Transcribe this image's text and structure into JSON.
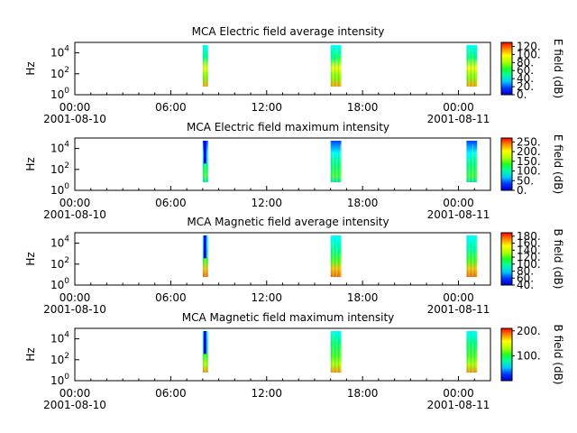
{
  "chart_data": [
    {
      "type": "heatmap",
      "title": "MCA  Electric field average intensity",
      "ylabel": "Hz",
      "x_ticks": [
        {
          "time": "00:00",
          "date": "2001-08-10"
        },
        {
          "time": "06:00",
          "date": ""
        },
        {
          "time": "12:00",
          "date": ""
        },
        {
          "time": "18:00",
          "date": ""
        },
        {
          "time": "00:00",
          "date": "2001-08-11"
        }
      ],
      "xlim": [
        "2001-08-10 00:00",
        "2001-08-11 02:00"
      ],
      "y_scale": "log",
      "ylim": [
        1,
        100000
      ],
      "y_ticks": [
        {
          "base": "10",
          "exp": "0"
        },
        {
          "base": "10",
          "exp": "2"
        },
        {
          "base": "10",
          "exp": "4"
        }
      ],
      "colorbar": {
        "label": "E field (dB)",
        "range": [
          0,
          130
        ],
        "ticks": [
          "0.",
          "20.",
          "40.",
          "60.",
          "80.",
          "100.",
          "120."
        ]
      },
      "segments": [
        {
          "start": "2001-08-10 08:00",
          "end": "2001-08-10 08:20"
        },
        {
          "start": "2001-08-10 16:00",
          "end": "2001-08-10 16:40"
        },
        {
          "start": "2001-08-11 00:30",
          "end": "2001-08-11 01:10"
        }
      ]
    },
    {
      "type": "heatmap",
      "title": "MCA  Electric field maximum intensity",
      "ylabel": "Hz",
      "x_ticks": [
        {
          "time": "00:00",
          "date": "2001-08-10"
        },
        {
          "time": "06:00",
          "date": ""
        },
        {
          "time": "12:00",
          "date": ""
        },
        {
          "time": "18:00",
          "date": ""
        },
        {
          "time": "00:00",
          "date": "2001-08-11"
        }
      ],
      "xlim": [
        "2001-08-10 00:00",
        "2001-08-11 02:00"
      ],
      "y_scale": "log",
      "ylim": [
        1,
        100000
      ],
      "y_ticks": [
        {
          "base": "10",
          "exp": "0"
        },
        {
          "base": "10",
          "exp": "2"
        },
        {
          "base": "10",
          "exp": "4"
        }
      ],
      "colorbar": {
        "label": "E field (dB)",
        "range": [
          0,
          270
        ],
        "ticks": [
          "0.",
          "50.",
          "100.",
          "150.",
          "200.",
          "250."
        ]
      },
      "segments": [
        {
          "start": "2001-08-10 08:00",
          "end": "2001-08-10 08:20"
        },
        {
          "start": "2001-08-10 16:00",
          "end": "2001-08-10 16:40"
        },
        {
          "start": "2001-08-11 00:30",
          "end": "2001-08-11 01:10"
        }
      ]
    },
    {
      "type": "heatmap",
      "title": "MCA  Magnetic field average intensity",
      "ylabel": "Hz",
      "x_ticks": [
        {
          "time": "00:00",
          "date": "2001-08-10"
        },
        {
          "time": "06:00",
          "date": ""
        },
        {
          "time": "12:00",
          "date": ""
        },
        {
          "time": "18:00",
          "date": ""
        },
        {
          "time": "00:00",
          "date": "2001-08-11"
        }
      ],
      "xlim": [
        "2001-08-10 00:00",
        "2001-08-11 02:00"
      ],
      "y_scale": "log",
      "ylim": [
        1,
        100000
      ],
      "y_ticks": [
        {
          "base": "10",
          "exp": "0"
        },
        {
          "base": "10",
          "exp": "2"
        },
        {
          "base": "10",
          "exp": "4"
        }
      ],
      "colorbar": {
        "label": "B field (dB)",
        "range": [
          40,
          190
        ],
        "ticks": [
          "40.",
          "60.",
          "80.",
          "100.",
          "120.",
          "140.",
          "160.",
          "180."
        ]
      },
      "segments": [
        {
          "start": "2001-08-10 08:00",
          "end": "2001-08-10 08:20"
        },
        {
          "start": "2001-08-10 16:00",
          "end": "2001-08-10 16:40"
        },
        {
          "start": "2001-08-11 00:30",
          "end": "2001-08-11 01:10"
        }
      ]
    },
    {
      "type": "heatmap",
      "title": "MCA  Magnetic field maximum intensity",
      "ylabel": "Hz",
      "x_ticks": [
        {
          "time": "00:00",
          "date": "2001-08-10"
        },
        {
          "time": "06:00",
          "date": ""
        },
        {
          "time": "12:00",
          "date": ""
        },
        {
          "time": "18:00",
          "date": ""
        },
        {
          "time": "00:00",
          "date": "2001-08-11"
        }
      ],
      "xlim": [
        "2001-08-10 00:00",
        "2001-08-11 02:00"
      ],
      "y_scale": "log",
      "ylim": [
        1,
        100000
      ],
      "y_ticks": [
        {
          "base": "10",
          "exp": "0"
        },
        {
          "base": "10",
          "exp": "2"
        },
        {
          "base": "10",
          "exp": "4"
        }
      ],
      "colorbar": {
        "label": "B field (dB)",
        "range": [
          0,
          210
        ],
        "ticks": [
          "100.",
          "200."
        ]
      },
      "segments": [
        {
          "start": "2001-08-10 08:00",
          "end": "2001-08-10 08:20"
        },
        {
          "start": "2001-08-10 16:00",
          "end": "2001-08-10 16:40"
        },
        {
          "start": "2001-08-11 00:30",
          "end": "2001-08-11 01:10"
        }
      ]
    }
  ]
}
